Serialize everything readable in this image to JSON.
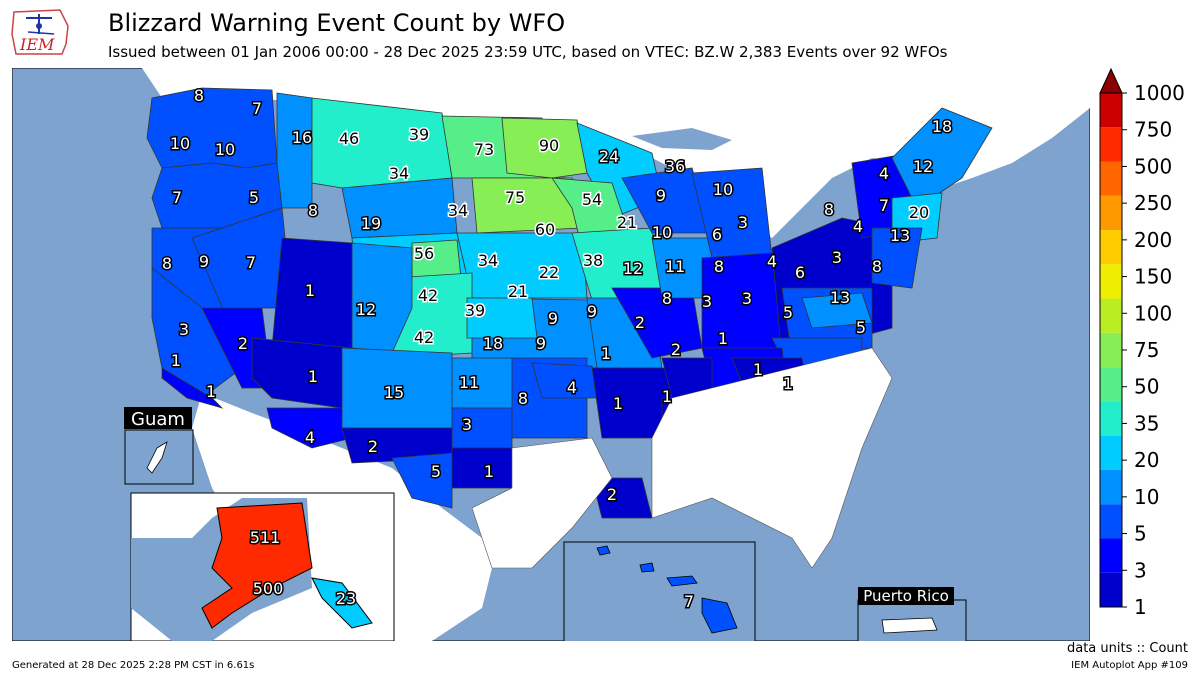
{
  "header": {
    "logo_text": "IEM",
    "title": "Blizzard Warning Event Count by WFO",
    "subtitle": "Issued between 01 Jan 2006 00:00 - 28 Dec 2025 23:59 UTC, based on VTEC: BZ.W   2,383 Events over 92 WFOs"
  },
  "insets": {
    "guam_label": "Guam",
    "puerto_rico_label": "Puerto Rico"
  },
  "colorbar": {
    "levels": [
      "1",
      "3",
      "5",
      "10",
      "20",
      "35",
      "50",
      "75",
      "100",
      "150",
      "200",
      "250",
      "500",
      "750",
      "1000"
    ],
    "colors": [
      "#0000cc",
      "#0000ff",
      "#0050ff",
      "#0090ff",
      "#00ccff",
      "#22eecc",
      "#55ee88",
      "#88ee55",
      "#bbee22",
      "#eeee00",
      "#ffcc00",
      "#ff9900",
      "#ff6600",
      "#ff2a00",
      "#cc0000"
    ],
    "over_color": "#8b0000"
  },
  "wfo_counts": [
    {
      "wfo": "SEW-north",
      "count": "8"
    },
    {
      "wfo": "OTX-west",
      "count": "7"
    },
    {
      "wfo": "SEW",
      "count": "10"
    },
    {
      "wfo": "PDT",
      "count": "10"
    },
    {
      "wfo": "MSO",
      "count": "16"
    },
    {
      "wfo": "TFX",
      "count": "46"
    },
    {
      "wfo": "GGW",
      "count": "39"
    },
    {
      "wfo": "BIS",
      "count": "73"
    },
    {
      "wfo": "FGF",
      "count": "90"
    },
    {
      "wfo": "DLH",
      "count": "24"
    },
    {
      "wfo": "MQT",
      "count": "36"
    },
    {
      "wfo": "GYX",
      "count": "18"
    },
    {
      "wfo": "CAR",
      "count": "12"
    },
    {
      "wfo": "PQR",
      "count": "7"
    },
    {
      "wfo": "BOI",
      "count": "5"
    },
    {
      "wfo": "PIH",
      "count": "8"
    },
    {
      "wfo": "BYZ",
      "count": "34"
    },
    {
      "wfo": "ABR",
      "count": "75"
    },
    {
      "wfo": "MPX",
      "count": "54"
    },
    {
      "wfo": "GRB",
      "count": "9"
    },
    {
      "wfo": "APX",
      "count": "10"
    },
    {
      "wfo": "BTV",
      "count": "4"
    },
    {
      "wfo": "ALY",
      "count": "7"
    },
    {
      "wfo": "BOX",
      "count": "20"
    },
    {
      "wfo": "BUF",
      "count": "8"
    },
    {
      "wfo": "BGM",
      "count": "4"
    },
    {
      "wfo": "OKX",
      "count": "13"
    },
    {
      "wfo": "RIW",
      "count": "19"
    },
    {
      "wfo": "UNR",
      "count": "34"
    },
    {
      "wfo": "FSD",
      "count": "60"
    },
    {
      "wfo": "ARX",
      "count": "21"
    },
    {
      "wfo": "DTX",
      "count": "3"
    },
    {
      "wfo": "GRR",
      "count": "6"
    },
    {
      "wfo": "MKX",
      "count": "10"
    },
    {
      "wfo": "MFR",
      "count": "8"
    },
    {
      "wfo": "LKN",
      "count": "9"
    },
    {
      "wfo": "REV",
      "count": "7"
    },
    {
      "wfo": "CYS",
      "count": "56"
    },
    {
      "wfo": "LBF",
      "count": "34"
    },
    {
      "wfo": "OAX",
      "count": "22"
    },
    {
      "wfo": "DMX",
      "count": "38"
    },
    {
      "wfo": "DVN",
      "count": "12"
    },
    {
      "wfo": "LOT",
      "count": "11"
    },
    {
      "wfo": "IWX",
      "count": "8"
    },
    {
      "wfo": "CLE",
      "count": "4"
    },
    {
      "wfo": "PBZ",
      "count": "6"
    },
    {
      "wfo": "CTP",
      "count": "3"
    },
    {
      "wfo": "PHI",
      "count": "8"
    },
    {
      "wfo": "SLC",
      "count": "1"
    },
    {
      "wfo": "BOU",
      "count": "42"
    },
    {
      "wfo": "GID",
      "count": "21"
    },
    {
      "wfo": "GJT",
      "count": "12"
    },
    {
      "wfo": "IND",
      "count": "8"
    },
    {
      "wfo": "ILN",
      "count": "3"
    },
    {
      "wfo": "RLX",
      "count": "3"
    },
    {
      "wfo": "LWX",
      "count": "13"
    },
    {
      "wfo": "STO",
      "count": "3"
    },
    {
      "wfo": "GLD",
      "count": "39"
    },
    {
      "wfo": "TOP",
      "count": "9"
    },
    {
      "wfo": "EAX",
      "count": "9"
    },
    {
      "wfo": "LSX",
      "count": "2"
    },
    {
      "wfo": "RNK",
      "count": "5"
    },
    {
      "wfo": "AKQ",
      "count": "5"
    },
    {
      "wfo": "PUB",
      "count": "42"
    },
    {
      "wfo": "DDC",
      "count": "18"
    },
    {
      "wfo": "ICT",
      "count": "9"
    },
    {
      "wfo": "SGF",
      "count": "1"
    },
    {
      "wfo": "PAH",
      "count": "2"
    },
    {
      "wfo": "LMK",
      "count": "1"
    },
    {
      "wfo": "VEF",
      "count": "2"
    },
    {
      "wfo": "FGZ",
      "count": "1"
    },
    {
      "wfo": "LOX",
      "count": "1"
    },
    {
      "wfo": "SGX",
      "count": "1"
    },
    {
      "wfo": "ABQ",
      "count": "15"
    },
    {
      "wfo": "AMA",
      "count": "11"
    },
    {
      "wfo": "OUN",
      "count": "8"
    },
    {
      "wfo": "TSA",
      "count": "4"
    },
    {
      "wfo": "LZK",
      "count": "1"
    },
    {
      "wfo": "MEG",
      "count": "1"
    },
    {
      "wfo": "MRX",
      "count": "1"
    },
    {
      "wfo": "GSP",
      "count": "1"
    },
    {
      "wfo": "LUB",
      "count": "3"
    },
    {
      "wfo": "TWC",
      "count": "4"
    },
    {
      "wfo": "EPZ",
      "count": "2"
    },
    {
      "wfo": "MAF",
      "count": "5"
    },
    {
      "wfo": "FWD",
      "count": "1"
    },
    {
      "wfo": "LIX",
      "count": "2"
    },
    {
      "wfo": "AFG",
      "count": "511"
    },
    {
      "wfo": "AFC",
      "count": "500"
    },
    {
      "wfo": "AJK",
      "count": "23"
    },
    {
      "wfo": "HFO",
      "count": "7"
    }
  ],
  "footer": {
    "units": "data units :: Count",
    "generated": "Generated at 28 Dec 2025 2:28 PM CST in 6.61s",
    "app": "IEM Autoplot App #109"
  }
}
